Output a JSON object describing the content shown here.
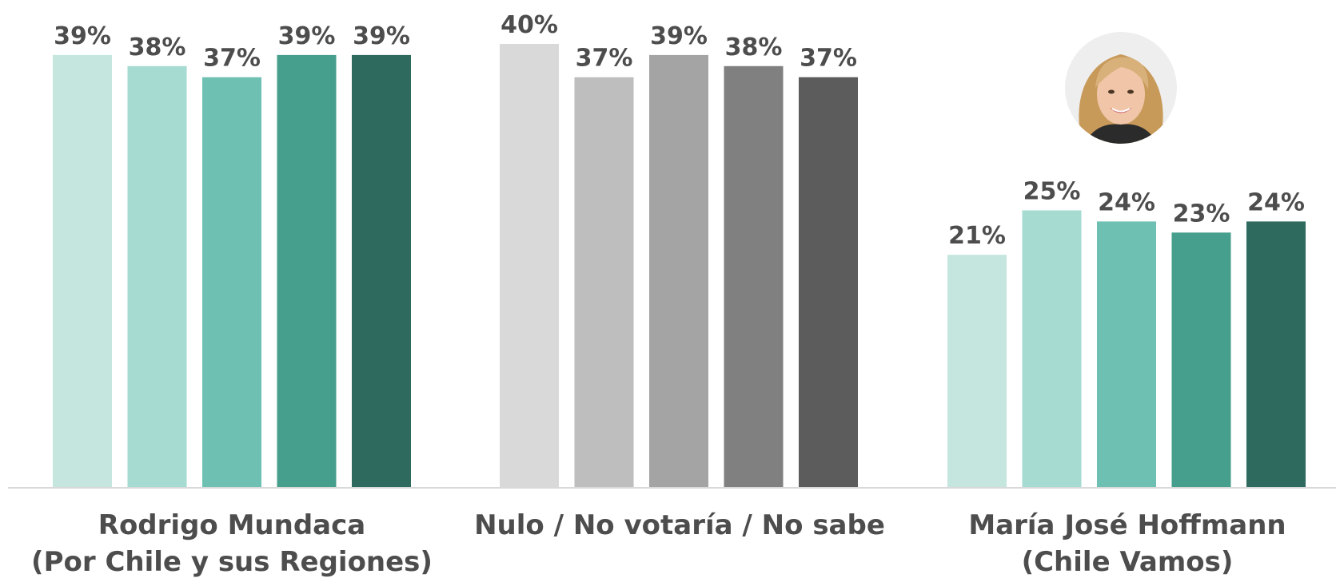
{
  "chart_data": {
    "type": "bar",
    "ylim": [
      0,
      40
    ],
    "grid": false,
    "groups": [
      {
        "label_lines": [
          "Rodrigo Mundaca",
          "(Por Chile y sus Regiones)"
        ],
        "value_labels": [
          "39%",
          "38%",
          "37%",
          "39%",
          "39%"
        ],
        "values": [
          39,
          38,
          37,
          39,
          39
        ],
        "colors": [
          "#c4e6df",
          "#a6dbd1",
          "#6ec1b2",
          "#469f8c",
          "#2e6a5e"
        ]
      },
      {
        "label_lines": [
          "Nulo / No votaría / No sabe"
        ],
        "value_labels": [
          "40%",
          "37%",
          "39%",
          "38%",
          "37%"
        ],
        "values": [
          40,
          37,
          39,
          38,
          37
        ],
        "colors": [
          "#d9d9d9",
          "#bebebe",
          "#a4a4a4",
          "#808080",
          "#5c5c5c"
        ]
      },
      {
        "label_lines": [
          "María José Hoffmann",
          "(Chile Vamos)"
        ],
        "value_labels": [
          "21%",
          "25%",
          "24%",
          "23%",
          "24%"
        ],
        "values": [
          21,
          25,
          24,
          23,
          24
        ],
        "colors": [
          "#c4e6df",
          "#a6dbd1",
          "#6ec1b2",
          "#469f8c",
          "#2e6a5e"
        ]
      }
    ]
  },
  "colors": {
    "label_text": "#4d4d4d",
    "axis_line": "#d9d9d9"
  },
  "icons": {
    "candidate_photo": "candidate-photo-icon"
  }
}
